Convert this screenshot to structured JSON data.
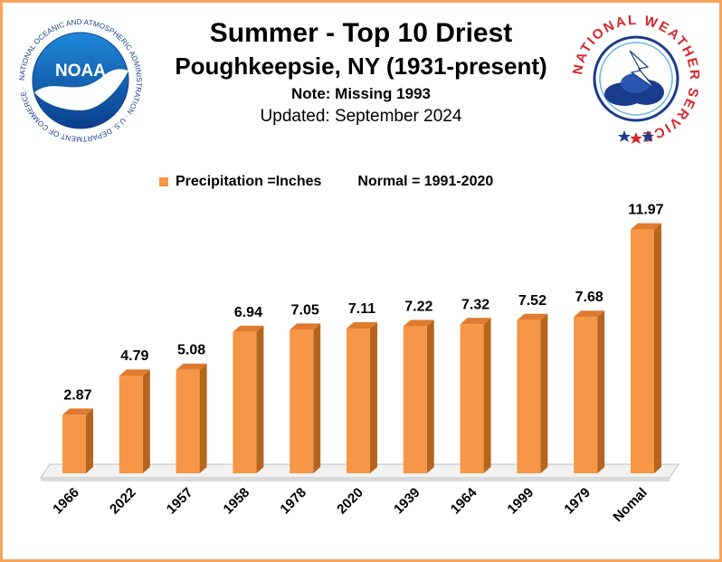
{
  "header": {
    "title": "Summer - Top 10 Driest",
    "subtitle": "Poughkeepsie, NY (1931-present)",
    "note": "Note: Missing 1993",
    "updated": "Updated:  September 2024"
  },
  "legend": {
    "series_label": "Precipitation =Inches",
    "normal_label": "Normal = 1991-2020"
  },
  "logos": {
    "noaa_text": "NOAA",
    "noaa_ring": "NATIONAL OCEANIC AND ATMOSPHERIC ADMINISTRATION · U.S. DEPARTMENT OF COMMERCE ·",
    "nws_ring": "NATIONAL WEATHER SERVICE"
  },
  "colors": {
    "bar_front": "#f79646",
    "bar_side": "#b5651d",
    "bar_top": "#e07a2e",
    "border": "#f7a35c"
  },
  "chart_data": {
    "type": "bar",
    "categories": [
      "1966",
      "2022",
      "1957",
      "1958",
      "1978",
      "2020",
      "1939",
      "1964",
      "1999",
      "1979",
      "Nomal"
    ],
    "series": [
      {
        "name": "Precipitation =Inches",
        "values": [
          2.87,
          4.79,
          5.08,
          6.94,
          7.05,
          7.11,
          7.22,
          7.32,
          7.52,
          7.68,
          11.97
        ]
      }
    ],
    "data_labels": [
      "2.87",
      "4.79",
      "5.08",
      "6.94",
      "7.05",
      "7.11",
      "7.22",
      "7.32",
      "7.52",
      "7.68",
      "11.97"
    ],
    "ylim": [
      0,
      12
    ],
    "grid": false,
    "legend_position": "top",
    "title": "Summer - Top 10 Driest",
    "xlabel": "",
    "ylabel": ""
  }
}
